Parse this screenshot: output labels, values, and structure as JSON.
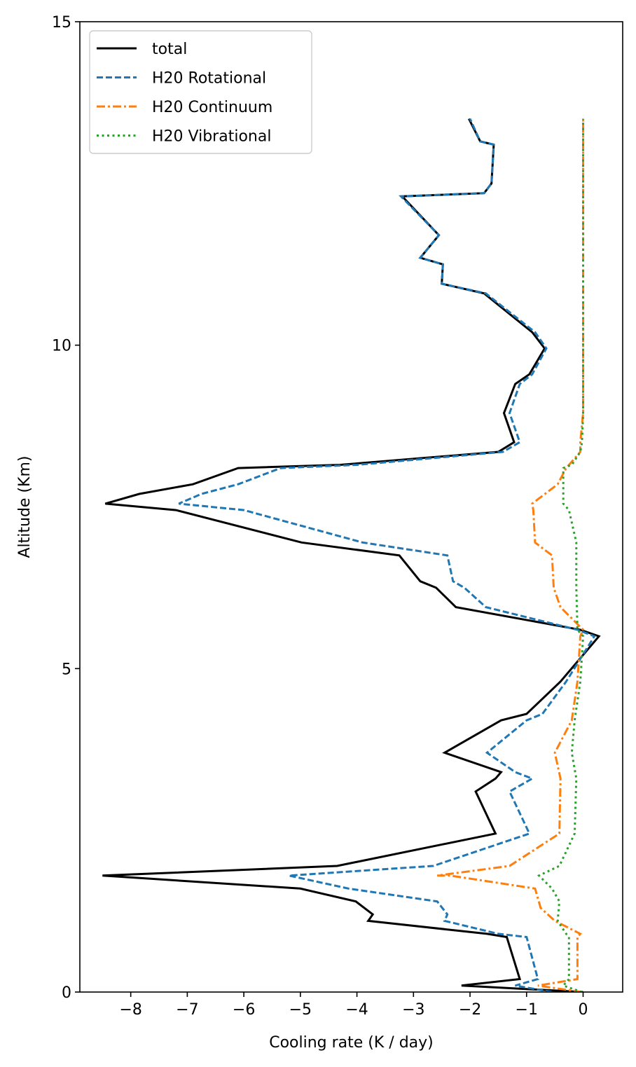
{
  "chart_data": {
    "type": "line",
    "title": "",
    "xlabel": "Cooling rate (K / day)",
    "ylabel": "Altitude (Km)",
    "xlim": [
      -8.9,
      0.7
    ],
    "ylim": [
      0,
      15
    ],
    "xticks": [
      -8,
      -7,
      -6,
      -5,
      -4,
      -3,
      -2,
      -1,
      0
    ],
    "xtick_labels": [
      "−8",
      "−7",
      "−6",
      "−5",
      "−4",
      "−3",
      "−2",
      "−1",
      "0"
    ],
    "yticks": [
      0,
      5,
      10,
      15
    ],
    "ytick_labels": [
      "0",
      "5",
      "10",
      "15"
    ],
    "grid": false,
    "legend_position": "top-left",
    "series": [
      {
        "name": "total",
        "color": "#000000",
        "dash": "solid",
        "points": [
          [
            0,
            0.0
          ],
          [
            -2.15,
            0.1
          ],
          [
            -1.12,
            0.2
          ],
          [
            -1.35,
            0.85
          ],
          [
            -1.7,
            0.9
          ],
          [
            -3.8,
            1.1
          ],
          [
            -3.72,
            1.2
          ],
          [
            -4.02,
            1.4
          ],
          [
            -5.0,
            1.6
          ],
          [
            -8.5,
            1.8
          ],
          [
            -4.35,
            1.95
          ],
          [
            -1.55,
            2.45
          ],
          [
            -1.9,
            3.1
          ],
          [
            -1.55,
            3.3
          ],
          [
            -1.45,
            3.4
          ],
          [
            -2.45,
            3.7
          ],
          [
            -1.45,
            4.2
          ],
          [
            -1.0,
            4.3
          ],
          [
            -0.4,
            4.8
          ],
          [
            0.28,
            5.5
          ],
          [
            -0.05,
            5.6
          ],
          [
            -2.25,
            5.95
          ],
          [
            -2.6,
            6.25
          ],
          [
            -2.88,
            6.35
          ],
          [
            -3.25,
            6.75
          ],
          [
            -4.98,
            6.95
          ],
          [
            -7.2,
            7.45
          ],
          [
            -8.45,
            7.55
          ],
          [
            -7.85,
            7.7
          ],
          [
            -6.9,
            7.85
          ],
          [
            -6.1,
            8.1
          ],
          [
            -4.3,
            8.15
          ],
          [
            -1.5,
            8.35
          ],
          [
            -1.22,
            8.5
          ],
          [
            -1.4,
            8.95
          ],
          [
            -1.2,
            9.4
          ],
          [
            -0.95,
            9.55
          ],
          [
            -0.68,
            9.95
          ],
          [
            -0.9,
            10.2
          ],
          [
            -1.75,
            10.8
          ],
          [
            -2.5,
            10.95
          ],
          [
            -2.48,
            11.25
          ],
          [
            -2.88,
            11.35
          ],
          [
            -2.55,
            11.7
          ],
          [
            -3.2,
            12.3
          ],
          [
            -1.75,
            12.35
          ],
          [
            -1.62,
            12.5
          ],
          [
            -1.58,
            13.1
          ],
          [
            -1.82,
            13.15
          ],
          [
            -2.02,
            13.5
          ]
        ]
      },
      {
        "name": "H20 Rotational",
        "color": "#1f77b4",
        "dash": "dashed",
        "points": [
          [
            -0.55,
            0.0
          ],
          [
            -1.2,
            0.1
          ],
          [
            -0.8,
            0.2
          ],
          [
            -1.0,
            0.85
          ],
          [
            -1.5,
            0.9
          ],
          [
            -2.45,
            1.1
          ],
          [
            -2.4,
            1.2
          ],
          [
            -2.58,
            1.4
          ],
          [
            -4.15,
            1.6
          ],
          [
            -5.2,
            1.8
          ],
          [
            -2.65,
            1.95
          ],
          [
            -0.95,
            2.45
          ],
          [
            -1.3,
            3.1
          ],
          [
            -0.9,
            3.3
          ],
          [
            -1.2,
            3.4
          ],
          [
            -1.7,
            3.7
          ],
          [
            -1.0,
            4.2
          ],
          [
            -0.72,
            4.3
          ],
          [
            -0.3,
            4.8
          ],
          [
            0.2,
            5.5
          ],
          [
            -0.1,
            5.6
          ],
          [
            -1.72,
            5.95
          ],
          [
            -2.1,
            6.25
          ],
          [
            -2.3,
            6.35
          ],
          [
            -2.4,
            6.75
          ],
          [
            -3.9,
            6.95
          ],
          [
            -6.0,
            7.45
          ],
          [
            -7.15,
            7.55
          ],
          [
            -6.75,
            7.7
          ],
          [
            -6.1,
            7.85
          ],
          [
            -5.35,
            8.1
          ],
          [
            -4.0,
            8.15
          ],
          [
            -1.42,
            8.35
          ],
          [
            -1.12,
            8.5
          ],
          [
            -1.3,
            8.95
          ],
          [
            -1.12,
            9.4
          ],
          [
            -0.9,
            9.55
          ],
          [
            -0.65,
            9.95
          ],
          [
            -0.85,
            10.2
          ],
          [
            -1.72,
            10.8
          ],
          [
            -2.5,
            10.95
          ],
          [
            -2.48,
            11.25
          ],
          [
            -2.88,
            11.35
          ],
          [
            -2.55,
            11.7
          ],
          [
            -3.22,
            12.3
          ],
          [
            -1.75,
            12.35
          ],
          [
            -1.62,
            12.5
          ],
          [
            -1.58,
            13.1
          ],
          [
            -1.82,
            13.15
          ],
          [
            -2.0,
            13.5
          ]
        ]
      },
      {
        "name": "H20 Continuum",
        "color": "#ff7f0e",
        "dash": "dashdot",
        "points": [
          [
            -0.02,
            0.0
          ],
          [
            -0.8,
            0.1
          ],
          [
            -0.1,
            0.2
          ],
          [
            -0.1,
            0.85
          ],
          [
            -0.05,
            0.9
          ],
          [
            -0.5,
            1.1
          ],
          [
            -0.75,
            1.3
          ],
          [
            -0.85,
            1.6
          ],
          [
            -2.35,
            1.8
          ],
          [
            -2.58,
            1.8
          ],
          [
            -1.3,
            1.95
          ],
          [
            -0.42,
            2.45
          ],
          [
            -0.4,
            3.3
          ],
          [
            -0.5,
            3.7
          ],
          [
            -0.2,
            4.2
          ],
          [
            -0.1,
            4.8
          ],
          [
            -0.05,
            5.5
          ],
          [
            0.0,
            5.6
          ],
          [
            -0.4,
            5.95
          ],
          [
            -0.52,
            6.25
          ],
          [
            -0.55,
            6.75
          ],
          [
            -0.85,
            6.95
          ],
          [
            -0.88,
            7.45
          ],
          [
            -0.9,
            7.55
          ],
          [
            -0.45,
            7.85
          ],
          [
            -0.3,
            8.1
          ],
          [
            -0.05,
            8.35
          ],
          [
            -0.05,
            8.5
          ],
          [
            0.0,
            8.95
          ],
          [
            0.0,
            13.5
          ]
        ]
      },
      {
        "name": "H20 Vibrational",
        "color": "#2ca02c",
        "dash": "dotted",
        "points": [
          [
            -0.02,
            0.0
          ],
          [
            -0.35,
            0.1
          ],
          [
            -0.25,
            0.2
          ],
          [
            -0.25,
            0.85
          ],
          [
            -0.3,
            0.9
          ],
          [
            -0.45,
            1.1
          ],
          [
            -0.42,
            1.4
          ],
          [
            -0.55,
            1.6
          ],
          [
            -0.78,
            1.8
          ],
          [
            -0.42,
            1.95
          ],
          [
            -0.15,
            2.45
          ],
          [
            -0.12,
            3.3
          ],
          [
            -0.2,
            3.7
          ],
          [
            -0.15,
            4.2
          ],
          [
            -0.05,
            4.8
          ],
          [
            0.0,
            5.5
          ],
          [
            -0.1,
            5.6
          ],
          [
            -0.12,
            6.25
          ],
          [
            -0.12,
            6.95
          ],
          [
            -0.25,
            7.45
          ],
          [
            -0.35,
            7.55
          ],
          [
            -0.35,
            8.1
          ],
          [
            -0.2,
            8.15
          ],
          [
            -0.05,
            8.35
          ],
          [
            -0.02,
            8.5
          ],
          [
            0.0,
            8.95
          ],
          [
            0.0,
            13.5
          ]
        ]
      }
    ]
  }
}
